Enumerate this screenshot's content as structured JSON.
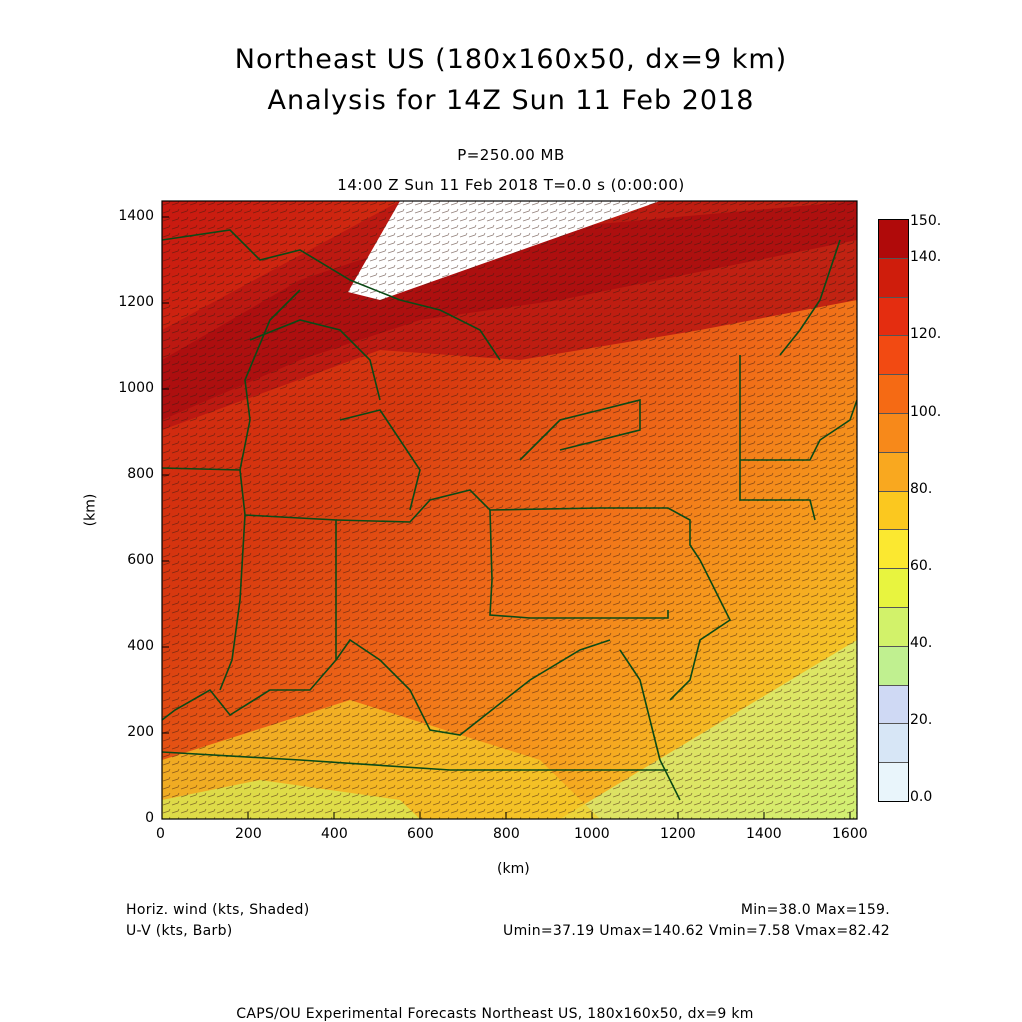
{
  "header": {
    "title_line1": "Northeast US (180x160x50, dx=9 km)",
    "title_line2": "Analysis for 14Z Sun 11 Feb 2018",
    "level": "P=250.00 MB",
    "time": "14:00 Z Sun 11 Feb 2018    T=0.0 s (0:00:00)"
  },
  "axes": {
    "x_unit": "(km)",
    "y_unit": "(km)",
    "x_ticks": [
      "0",
      "200",
      "400",
      "600",
      "800",
      "1000",
      "1200",
      "1400",
      "1600"
    ],
    "y_ticks": [
      "0",
      "200",
      "400",
      "600",
      "800",
      "1000",
      "1200",
      "1400"
    ],
    "x_range": [
      0,
      1620
    ],
    "y_range": [
      0,
      1440
    ]
  },
  "colorbar": {
    "labels": [
      "150.",
      "140.",
      "120.",
      "100.",
      "80.",
      "60.",
      "40.",
      "20.",
      "0.0"
    ],
    "colors": [
      "#b00a0a",
      "#cf1d0c",
      "#e42d10",
      "#f24a12",
      "#f56a14",
      "#f7891a",
      "#f9a81f",
      "#fbc81f",
      "#fbe830",
      "#e8f43f",
      "#d2f26a",
      "#c0f090",
      "#cfd9f4",
      "#d7e6f6",
      "#e9f5fb"
    ]
  },
  "legend": {
    "left_line1": "Horiz. wind (kts, Shaded)",
    "left_line2": "U-V (kts, Barb)",
    "right_line1": "Min=38.0 Max=159.",
    "right_line2": "Umin=37.19 Umax=140.62 Vmin=7.58 Vmax=82.42"
  },
  "footer": "CAPS/OU Experimental Forecasts  Northeast US, 180x160x50, dx=9 km",
  "map": {
    "shading": "wind speed (kts)",
    "overlay": "state and coastline boundaries",
    "boundary_color": "#0b4a16",
    "barb_color": "#222222"
  }
}
